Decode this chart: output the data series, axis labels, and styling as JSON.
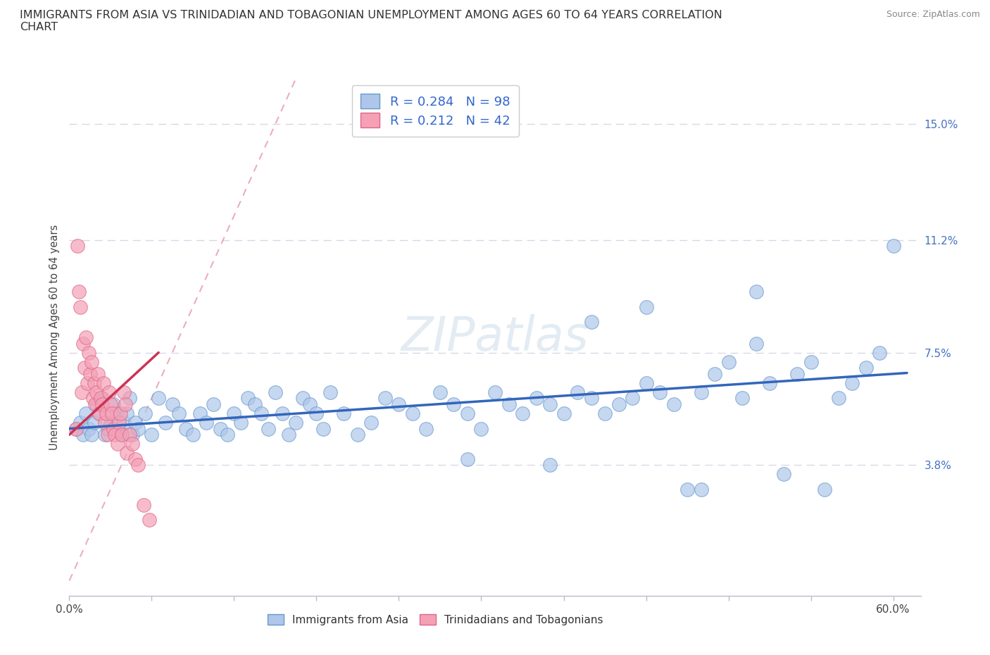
{
  "title": "IMMIGRANTS FROM ASIA VS TRINIDADIAN AND TOBAGONIAN UNEMPLOYMENT AMONG AGES 60 TO 64 YEARS CORRELATION\nCHART",
  "source": "Source: ZipAtlas.com",
  "ylabel": "Unemployment Among Ages 60 to 64 years",
  "xlim": [
    0.0,
    0.62
  ],
  "ylim": [
    -0.005,
    0.165
  ],
  "ytick_positions": [
    0.0,
    0.038,
    0.075,
    0.112,
    0.15
  ],
  "ytick_labels": [
    "",
    "3.8%",
    "7.5%",
    "11.2%",
    "15.0%"
  ],
  "legend1_label": "Immigrants from Asia",
  "legend2_label": "Trinidadians and Tobagonians",
  "R1": 0.284,
  "N1": 98,
  "R2": 0.212,
  "N2": 42,
  "color_asia": "#aec6ea",
  "color_tnt": "#f5a0b5",
  "edge_color_asia": "#6699cc",
  "edge_color_tnt": "#dd6688",
  "trend_color_asia": "#3366bb",
  "trend_color_tnt": "#cc3355",
  "diag_color": "#e8a0b0",
  "background_color": "#ffffff",
  "grid_color": "#d8d8e8",
  "asia_x": [
    0.005,
    0.008,
    0.01,
    0.012,
    0.014,
    0.016,
    0.018,
    0.02,
    0.022,
    0.024,
    0.026,
    0.028,
    0.03,
    0.032,
    0.034,
    0.036,
    0.038,
    0.04,
    0.042,
    0.044,
    0.046,
    0.048,
    0.05,
    0.055,
    0.06,
    0.065,
    0.07,
    0.075,
    0.08,
    0.085,
    0.09,
    0.095,
    0.1,
    0.105,
    0.11,
    0.115,
    0.12,
    0.125,
    0.13,
    0.135,
    0.14,
    0.145,
    0.15,
    0.155,
    0.16,
    0.165,
    0.17,
    0.175,
    0.18,
    0.185,
    0.19,
    0.2,
    0.21,
    0.22,
    0.23,
    0.24,
    0.25,
    0.26,
    0.27,
    0.28,
    0.29,
    0.3,
    0.31,
    0.32,
    0.33,
    0.34,
    0.35,
    0.36,
    0.37,
    0.38,
    0.39,
    0.4,
    0.41,
    0.42,
    0.43,
    0.44,
    0.45,
    0.46,
    0.47,
    0.48,
    0.49,
    0.5,
    0.51,
    0.52,
    0.53,
    0.54,
    0.55,
    0.56,
    0.57,
    0.58,
    0.59,
    0.6,
    0.38,
    0.42,
    0.35,
    0.46,
    0.5,
    0.29
  ],
  "asia_y": [
    0.05,
    0.052,
    0.048,
    0.055,
    0.05,
    0.048,
    0.052,
    0.058,
    0.055,
    0.06,
    0.048,
    0.05,
    0.052,
    0.058,
    0.055,
    0.05,
    0.048,
    0.052,
    0.055,
    0.06,
    0.048,
    0.052,
    0.05,
    0.055,
    0.048,
    0.06,
    0.052,
    0.058,
    0.055,
    0.05,
    0.048,
    0.055,
    0.052,
    0.058,
    0.05,
    0.048,
    0.055,
    0.052,
    0.06,
    0.058,
    0.055,
    0.05,
    0.062,
    0.055,
    0.048,
    0.052,
    0.06,
    0.058,
    0.055,
    0.05,
    0.062,
    0.055,
    0.048,
    0.052,
    0.06,
    0.058,
    0.055,
    0.05,
    0.062,
    0.058,
    0.055,
    0.05,
    0.062,
    0.058,
    0.055,
    0.06,
    0.058,
    0.055,
    0.062,
    0.06,
    0.055,
    0.058,
    0.06,
    0.065,
    0.062,
    0.058,
    0.03,
    0.062,
    0.068,
    0.072,
    0.06,
    0.078,
    0.065,
    0.035,
    0.068,
    0.072,
    0.03,
    0.06,
    0.065,
    0.07,
    0.075,
    0.11,
    0.085,
    0.09,
    0.038,
    0.03,
    0.095,
    0.04
  ],
  "tnt_x": [
    0.005,
    0.006,
    0.007,
    0.008,
    0.009,
    0.01,
    0.011,
    0.012,
    0.013,
    0.014,
    0.015,
    0.016,
    0.017,
    0.018,
    0.019,
    0.02,
    0.021,
    0.022,
    0.023,
    0.024,
    0.025,
    0.026,
    0.027,
    0.028,
    0.029,
    0.03,
    0.031,
    0.032,
    0.033,
    0.035,
    0.036,
    0.037,
    0.038,
    0.04,
    0.041,
    0.042,
    0.044,
    0.046,
    0.048,
    0.05,
    0.054,
    0.058
  ],
  "tnt_y": [
    0.05,
    0.11,
    0.095,
    0.09,
    0.062,
    0.078,
    0.07,
    0.08,
    0.065,
    0.075,
    0.068,
    0.072,
    0.06,
    0.065,
    0.058,
    0.062,
    0.068,
    0.055,
    0.06,
    0.058,
    0.065,
    0.052,
    0.055,
    0.048,
    0.062,
    0.058,
    0.055,
    0.05,
    0.048,
    0.045,
    0.052,
    0.055,
    0.048,
    0.062,
    0.058,
    0.042,
    0.048,
    0.045,
    0.04,
    0.038,
    0.025,
    0.02
  ]
}
